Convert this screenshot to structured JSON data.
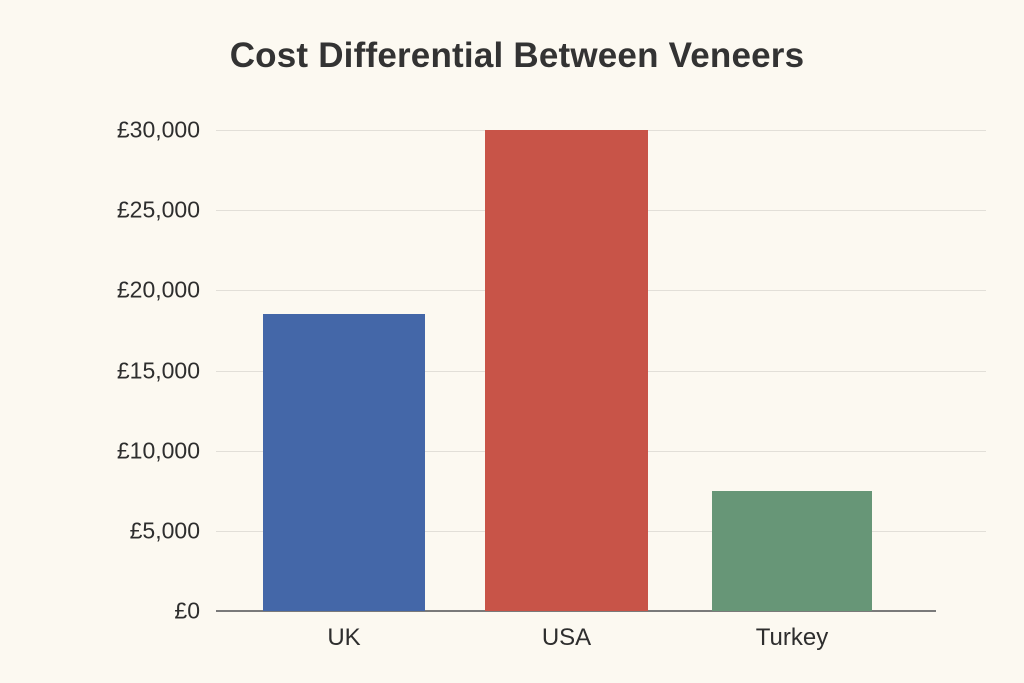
{
  "chart_data": {
    "type": "bar",
    "title": "Cost Differential Between Veneers",
    "xlabel": "",
    "ylabel": "",
    "categories": [
      "UK",
      "USA",
      "Turkey"
    ],
    "values": [
      18500,
      30000,
      7500
    ],
    "colors": [
      "#4467a8",
      "#c85448",
      "#679677"
    ],
    "ylim": [
      0,
      30000
    ],
    "yticks": [
      0,
      5000,
      10000,
      15000,
      20000,
      25000,
      30000
    ],
    "ytick_labels": [
      "£0",
      "£5,000",
      "£10,000",
      "£15,000",
      "£20,000",
      "£25,000",
      "£30,000"
    ],
    "grid": true,
    "legend": null
  }
}
